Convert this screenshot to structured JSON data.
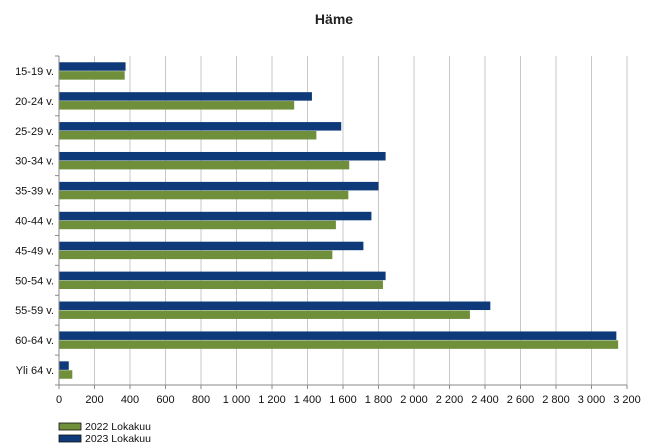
{
  "chart_data": {
    "type": "bar",
    "orientation": "horizontal",
    "title": "Häme",
    "xlabel": "",
    "ylabel": "",
    "categories": [
      "15-19 v.",
      "20-24 v.",
      "25-29 v.",
      "30-34 v.",
      "35-39 v.",
      "40-44 v.",
      "45-49 v.",
      "50-54 v.",
      "55-59 v.",
      "60-64 v.",
      "Yli 64 v."
    ],
    "series": [
      {
        "name": "2022 Lokakuu",
        "color": "#6f8f3a",
        "values": [
          370,
          1325,
          1450,
          1635,
          1630,
          1560,
          1540,
          1825,
          2315,
          3150,
          75
        ]
      },
      {
        "name": "2023 Lokakuu",
        "color": "#0f3a7a",
        "values": [
          375,
          1425,
          1590,
          1840,
          1800,
          1760,
          1715,
          1840,
          2430,
          3140,
          55
        ]
      }
    ],
    "xlim": [
      0,
      3200
    ],
    "xticks": [
      0,
      200,
      400,
      600,
      800,
      1000,
      1200,
      1400,
      1600,
      1800,
      2000,
      2200,
      2400,
      2600,
      2800,
      3000,
      3200
    ],
    "xtick_labels": [
      "0",
      "200",
      "400",
      "600",
      "800",
      "1 000",
      "1 200",
      "1 400",
      "1 600",
      "1 800",
      "2 000",
      "2 200",
      "2 400",
      "2 600",
      "2 800",
      "3 000",
      "3 200"
    ],
    "grid": "vertical",
    "legend": "bottom-left"
  }
}
